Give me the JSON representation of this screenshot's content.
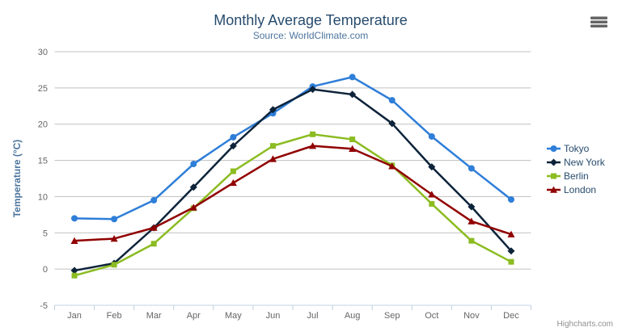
{
  "chart_data": {
    "type": "line",
    "title": "Monthly Average Temperature",
    "subtitle": "Source: WorldClimate.com",
    "xlabel": "",
    "ylabel": "Temperature (°C)",
    "categories": [
      "Jan",
      "Feb",
      "Mar",
      "Apr",
      "May",
      "Jun",
      "Jul",
      "Aug",
      "Sep",
      "Oct",
      "Nov",
      "Dec"
    ],
    "ylim": [
      -5,
      30
    ],
    "ytick_interval": 5,
    "grid": true,
    "legend_position": "right",
    "series": [
      {
        "name": "Tokyo",
        "color": "#2f7ed8",
        "marker": "circle",
        "values": [
          7.0,
          6.9,
          9.5,
          14.5,
          18.2,
          21.5,
          25.2,
          26.5,
          23.3,
          18.3,
          13.9,
          9.6
        ]
      },
      {
        "name": "New York",
        "color": "#0d233a",
        "marker": "diamond",
        "values": [
          -0.2,
          0.8,
          5.7,
          11.3,
          17.0,
          22.0,
          24.8,
          24.1,
          20.1,
          14.1,
          8.6,
          2.5
        ]
      },
      {
        "name": "Berlin",
        "color": "#8bbc21",
        "marker": "square",
        "values": [
          -0.9,
          0.6,
          3.5,
          8.4,
          13.5,
          17.0,
          18.6,
          17.9,
          14.3,
          9.0,
          3.9,
          1.0
        ]
      },
      {
        "name": "London",
        "color": "#910000",
        "marker": "triangle",
        "values": [
          3.9,
          4.2,
          5.7,
          8.5,
          11.9,
          15.2,
          17.0,
          16.6,
          14.2,
          10.3,
          6.6,
          4.8
        ]
      }
    ]
  },
  "colors": {
    "gridline": "#c0c0c0",
    "axis_line": "#c0d0e0",
    "axis_label": "#666666",
    "legend_text": "#274b6d",
    "menu_icon": "#666666"
  },
  "export_menu": {
    "icon": "hamburger-menu-icon"
  },
  "credits": {
    "label": "Highcharts.com"
  }
}
